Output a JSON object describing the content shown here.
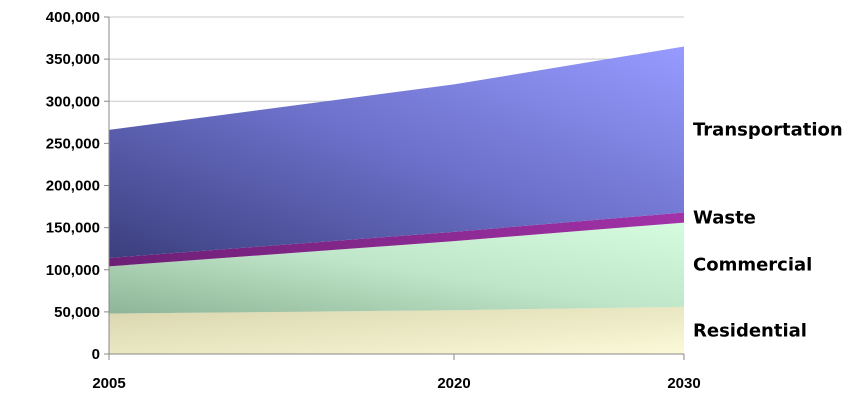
{
  "chart_data": {
    "type": "area",
    "stacked": true,
    "x": [
      2005,
      2020,
      2030
    ],
    "x_tick_labels": [
      "2005",
      "2020",
      "2030"
    ],
    "ylim": [
      0,
      400000
    ],
    "y_ticks": [
      0,
      50000,
      100000,
      150000,
      200000,
      250000,
      300000,
      350000,
      400000
    ],
    "y_tick_labels": [
      "0",
      "50,000",
      "100,000",
      "150,000",
      "200,000",
      "250,000",
      "300,000",
      "350,000",
      "400,000"
    ],
    "grid": true,
    "legend": "right-edge labels",
    "series": [
      {
        "name": "Residential",
        "values": [
          48000,
          52000,
          56000
        ],
        "color": "#f2f0c8"
      },
      {
        "name": "Commercial",
        "values": [
          56000,
          82000,
          100000
        ],
        "color": "#c8f2d2"
      },
      {
        "name": "Waste",
        "values": [
          10000,
          11000,
          12000
        ],
        "color": "#8e2a93"
      },
      {
        "name": "Transportation",
        "values": [
          152000,
          175000,
          197000
        ],
        "color": "#8c8ff5"
      }
    ]
  }
}
